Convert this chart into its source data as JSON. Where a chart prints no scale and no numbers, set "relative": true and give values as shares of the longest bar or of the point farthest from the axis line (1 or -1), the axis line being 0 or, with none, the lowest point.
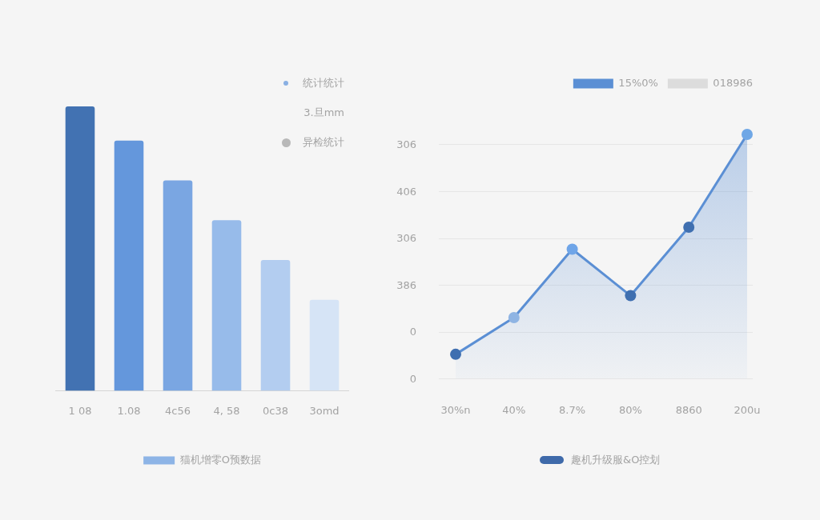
{
  "chart_data": [
    {
      "type": "bar",
      "relative": true,
      "categories": [
        "1 08",
        "1.08",
        "4c56",
        "4, 58",
        "0c38",
        "3omd"
      ],
      "series": [
        {
          "name": "猫机增零O预数据",
          "color": "#8db4e6",
          "colors": [
            "#4272b2",
            "#6497dc",
            "#7aa6e2",
            "#97bbea",
            "#b3cdf0",
            "#d6e4f6"
          ],
          "values": [
            1,
            0.88,
            0.74,
            0.6,
            0.46,
            0.32
          ]
        }
      ],
      "legend": "bottom",
      "annotations": [
        "统计统计",
        "3.旦mm",
        "异检统计"
      ]
    },
    {
      "type": "area",
      "relative": true,
      "categories": [
        "30%n",
        "40%",
        "8.7%",
        "80%",
        "8860",
        "200u"
      ],
      "series": [
        {
          "name": "15%0%",
          "color": "#5b8fd4",
          "colors": [
            "#3f6fb0",
            "#8fb4e3",
            "#6fa5e8",
            "#3f6fb0",
            "#3f6fb0",
            "#6fa7e6"
          ],
          "values": [
            0.1,
            0.25,
            0.53,
            0.34,
            0.62,
            1
          ]
        },
        {
          "name": "018986",
          "color": "#dcdcdc",
          "values": [
            null,
            null,
            null,
            null,
            null,
            null
          ]
        }
      ],
      "grid": "y",
      "legend": "top right",
      "marker": "circle",
      "annotations": [
        "306",
        "406",
        "306",
        "386",
        "0",
        "0",
        "趣机升级服&O控划"
      ]
    }
  ]
}
